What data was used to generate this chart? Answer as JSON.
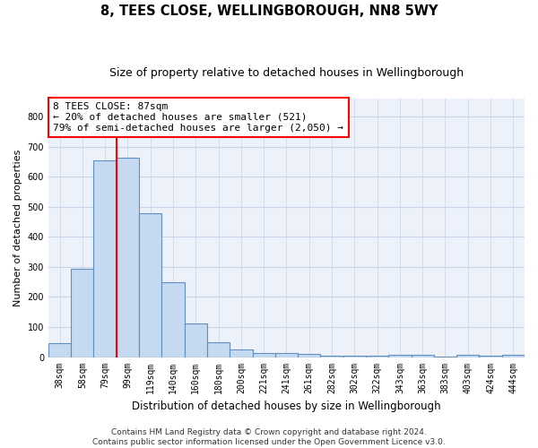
{
  "title": "8, TEES CLOSE, WELLINGBOROUGH, NN8 5WY",
  "subtitle": "Size of property relative to detached houses in Wellingborough",
  "xlabel": "Distribution of detached houses by size in Wellingborough",
  "ylabel": "Number of detached properties",
  "categories": [
    "38sqm",
    "58sqm",
    "79sqm",
    "99sqm",
    "119sqm",
    "140sqm",
    "160sqm",
    "180sqm",
    "200sqm",
    "221sqm",
    "241sqm",
    "261sqm",
    "282sqm",
    "302sqm",
    "322sqm",
    "343sqm",
    "363sqm",
    "383sqm",
    "403sqm",
    "424sqm",
    "444sqm"
  ],
  "values": [
    45,
    293,
    655,
    663,
    478,
    250,
    113,
    50,
    25,
    14,
    14,
    10,
    6,
    6,
    5,
    8,
    8,
    2,
    8,
    5,
    8
  ],
  "bar_color": "#c5d9f1",
  "bar_edge_color": "#6090c0",
  "annotation_line1": "8 TEES CLOSE: 87sqm",
  "annotation_line2": "← 20% of detached houses are smaller (521)",
  "annotation_line3": "79% of semi-detached houses are larger (2,050) →",
  "red_line_bar_index": 2,
  "ylim": [
    0,
    860
  ],
  "yticks": [
    0,
    100,
    200,
    300,
    400,
    500,
    600,
    700,
    800
  ],
  "footer_line1": "Contains HM Land Registry data © Crown copyright and database right 2024.",
  "footer_line2": "Contains public sector information licensed under the Open Government Licence v3.0.",
  "bg_color": "#edf2fa",
  "grid_color": "#c8d4e8",
  "title_fontsize": 10.5,
  "subtitle_fontsize": 9,
  "xlabel_fontsize": 8.5,
  "ylabel_fontsize": 8,
  "tick_fontsize": 7,
  "annotation_fontsize": 8,
  "footer_fontsize": 6.5
}
